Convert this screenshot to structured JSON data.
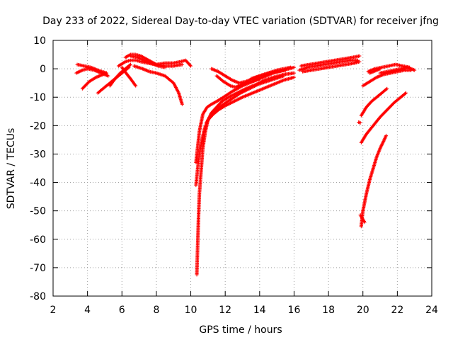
{
  "chart_data": {
    "type": "scatter",
    "title": "Day 233 of 2022, Sidereal Day-to-day VTEC variation (SDTVAR) for receiver jfng",
    "xlabel": "GPS time / hours",
    "ylabel": "SDTVAR / TECUs",
    "xlim": [
      2,
      24
    ],
    "ylim": [
      -80,
      10
    ],
    "xticks": [
      2,
      4,
      6,
      8,
      10,
      12,
      14,
      16,
      18,
      20,
      22,
      24
    ],
    "yticks": [
      10,
      0,
      -10,
      -20,
      -30,
      -40,
      -50,
      -60,
      -70,
      -80
    ],
    "grid": true,
    "marker": "+",
    "series_color": "#ff0000",
    "tracks": [
      {
        "x": [
          3.35,
          3.7,
          4.0,
          4.4,
          4.8,
          5.2
        ],
        "y": [
          -1.5,
          -0.5,
          0.0,
          -0.5,
          -1.5,
          -2.5
        ]
      },
      {
        "x": [
          3.4,
          3.8,
          4.2,
          4.6,
          5.1
        ],
        "y": [
          1.5,
          1.0,
          0.5,
          -0.5,
          -1.5
        ]
      },
      {
        "x": [
          3.7,
          4.1,
          4.5,
          4.9,
          5.1
        ],
        "y": [
          -7.0,
          -4.5,
          -3.0,
          -2.0,
          -1.5
        ]
      },
      {
        "x": [
          4.6,
          5.0,
          5.4,
          5.8,
          6.1,
          6.4
        ],
        "y": [
          -8.5,
          -6.5,
          -4.5,
          -2.5,
          -1.0,
          0.5
        ]
      },
      {
        "x": [
          5.3,
          5.6,
          5.9,
          6.2,
          6.5
        ],
        "y": [
          -6.0,
          -3.5,
          -1.5,
          0.0,
          1.5
        ]
      },
      {
        "x": [
          6.2,
          6.5,
          6.8,
          7.1,
          7.4,
          7.7,
          8.0
        ],
        "y": [
          4.0,
          5.0,
          5.0,
          4.5,
          3.5,
          2.5,
          1.5
        ]
      },
      {
        "x": [
          6.5,
          6.9,
          7.3,
          7.7,
          8.1,
          8.5
        ],
        "y": [
          4.5,
          4.0,
          3.0,
          2.0,
          1.0,
          0.5
        ]
      },
      {
        "x": [
          5.8,
          6.2,
          6.5,
          6.8,
          7.1,
          7.5,
          8.0,
          8.5,
          9.0,
          9.5
        ],
        "y": [
          1.0,
          2.5,
          3.0,
          3.0,
          2.5,
          2.0,
          1.5,
          1.0,
          1.0,
          1.5
        ]
      },
      {
        "x": [
          8.0,
          8.5,
          9.0,
          9.4,
          9.7,
          10.0
        ],
        "y": [
          1.5,
          2.0,
          2.0,
          2.5,
          3.0,
          1.0
        ]
      },
      {
        "x": [
          6.7,
          7.2,
          7.6,
          8.0,
          8.5,
          9.0,
          9.3,
          9.5
        ],
        "y": [
          1.0,
          0.0,
          -1.0,
          -1.5,
          -2.5,
          -5.0,
          -8.5,
          -12.5
        ]
      },
      {
        "x": [
          6.0,
          6.3,
          6.5,
          6.8
        ],
        "y": [
          0.5,
          -2.0,
          -3.5,
          -6.0
        ]
      },
      {
        "x": [
          10.35,
          10.4,
          10.45,
          10.5,
          10.6,
          10.7,
          10.85,
          11.0,
          11.2,
          11.5,
          11.8,
          12.2,
          12.7,
          13.2,
          13.8,
          14.3,
          14.8,
          15.4,
          16.0
        ],
        "y": [
          -72.5,
          -62,
          -52,
          -44,
          -36,
          -28,
          -22,
          -18,
          -15.5,
          -13.5,
          -11.5,
          -10.0,
          -8.5,
          -7.0,
          -5.5,
          -4.0,
          -3.0,
          -2.0,
          -1.5
        ]
      },
      {
        "x": [
          10.3,
          10.4,
          10.5,
          10.65,
          10.8,
          11.0,
          11.3,
          11.6,
          12.0,
          12.5,
          13.0,
          13.6,
          14.2,
          14.8,
          15.4,
          16.0
        ],
        "y": [
          -41,
          -35,
          -30,
          -25,
          -21,
          -18,
          -16,
          -14.5,
          -13.0,
          -11.5,
          -10.0,
          -8.5,
          -7.0,
          -5.5,
          -4.0,
          -3.0
        ]
      },
      {
        "x": [
          10.3,
          10.5,
          10.7,
          10.95,
          11.2,
          11.5,
          11.9,
          12.4,
          13.0,
          13.6,
          14.2,
          14.8,
          15.4,
          16.0
        ],
        "y": [
          -33,
          -22,
          -16,
          -13.5,
          -12.5,
          -11.5,
          -10.0,
          -8.0,
          -6.0,
          -4.5,
          -3.0,
          -1.5,
          -0.5,
          0.5
        ]
      },
      {
        "x": [
          10.9,
          11.4,
          11.9,
          12.4,
          12.9,
          13.4,
          13.9,
          14.4,
          14.9,
          15.4
        ],
        "y": [
          -19,
          -14.5,
          -12.5,
          -10.5,
          -8.5,
          -7.0,
          -5.5,
          -4.5,
          -3.5,
          -2.5
        ]
      },
      {
        "x": [
          11.2,
          11.6,
          12.0,
          12.4,
          12.8,
          13.2,
          13.6,
          14.0,
          14.5,
          15.0,
          15.5
        ],
        "y": [
          0.0,
          -1.0,
          -2.5,
          -4.0,
          -5.0,
          -4.5,
          -3.5,
          -2.5,
          -1.5,
          -1.0,
          -0.5
        ]
      },
      {
        "x": [
          11.5,
          11.9,
          12.3,
          12.6,
          13.0,
          13.5,
          14.0
        ],
        "y": [
          -2.5,
          -4.5,
          -6.0,
          -6.5,
          -5.5,
          -4.5,
          -3.5
        ]
      },
      {
        "x": [
          13.5,
          14.0,
          14.5,
          15.0,
          15.4,
          15.8
        ],
        "y": [
          -3.5,
          -2.5,
          -1.5,
          -0.5,
          0.0,
          0.5
        ]
      },
      {
        "x": [
          16.3,
          16.8,
          17.3,
          17.8,
          18.3,
          18.8,
          19.3,
          19.7
        ],
        "y": [
          -0.5,
          0.5,
          1.0,
          1.5,
          2.0,
          2.5,
          3.0,
          3.0
        ]
      },
      {
        "x": [
          16.4,
          16.9,
          17.4,
          17.9,
          18.4,
          18.9,
          19.4,
          19.8
        ],
        "y": [
          1.0,
          1.5,
          2.0,
          2.5,
          3.0,
          3.5,
          4.0,
          4.5
        ]
      },
      {
        "x": [
          16.5,
          17.0,
          17.5,
          18.0,
          18.5,
          19.0,
          19.5,
          19.8
        ],
        "y": [
          -1.0,
          -0.5,
          0.0,
          0.5,
          1.0,
          1.5,
          2.0,
          2.5
        ]
      },
      {
        "x": [
          19.9,
          20.2,
          20.5,
          20.8,
          21.1,
          21.4
        ],
        "y": [
          -16.5,
          -13.5,
          -11.5,
          -10.0,
          -8.5,
          -7.0
        ]
      },
      {
        "x": [
          19.9,
          20.2,
          20.6,
          21.0,
          21.4,
          21.8,
          22.2,
          22.5
        ],
        "y": [
          -26.0,
          -23.0,
          -20.0,
          -17.0,
          -14.5,
          -12.0,
          -10.0,
          -8.5
        ]
      },
      {
        "x": [
          19.9,
          20.0,
          20.2,
          20.4,
          20.6,
          20.8,
          21.0,
          21.2,
          21.35
        ],
        "y": [
          -55.5,
          -50,
          -44,
          -39,
          -35,
          -31,
          -28,
          -25.5,
          -23.5
        ]
      },
      {
        "x": [
          19.85,
          19.95,
          20.1
        ],
        "y": [
          -51.5,
          -52.5,
          -54.0
        ]
      },
      {
        "x": [
          19.75,
          19.85
        ],
        "y": [
          -18.8,
          -19.0
        ]
      },
      {
        "x": [
          20.0,
          20.4,
          20.8,
          21.2,
          21.6,
          22.0,
          22.4,
          22.8
        ],
        "y": [
          -6.0,
          -4.5,
          -3.0,
          -2.0,
          -1.5,
          -1.0,
          -0.5,
          -0.5
        ]
      },
      {
        "x": [
          20.3,
          20.7,
          21.1,
          21.5,
          21.9,
          22.3,
          22.7
        ],
        "y": [
          -1.0,
          0.0,
          0.5,
          1.0,
          1.5,
          1.0,
          0.5
        ]
      },
      {
        "x": [
          21.0,
          21.4,
          21.8,
          22.2,
          22.6,
          23.0
        ],
        "y": [
          -1.5,
          -1.0,
          -0.5,
          0.0,
          0.5,
          -0.5
        ]
      },
      {
        "x": [
          20.4,
          20.6,
          20.8,
          21.0
        ],
        "y": [
          -1.5,
          -1.0,
          -0.5,
          0.0
        ]
      }
    ]
  }
}
